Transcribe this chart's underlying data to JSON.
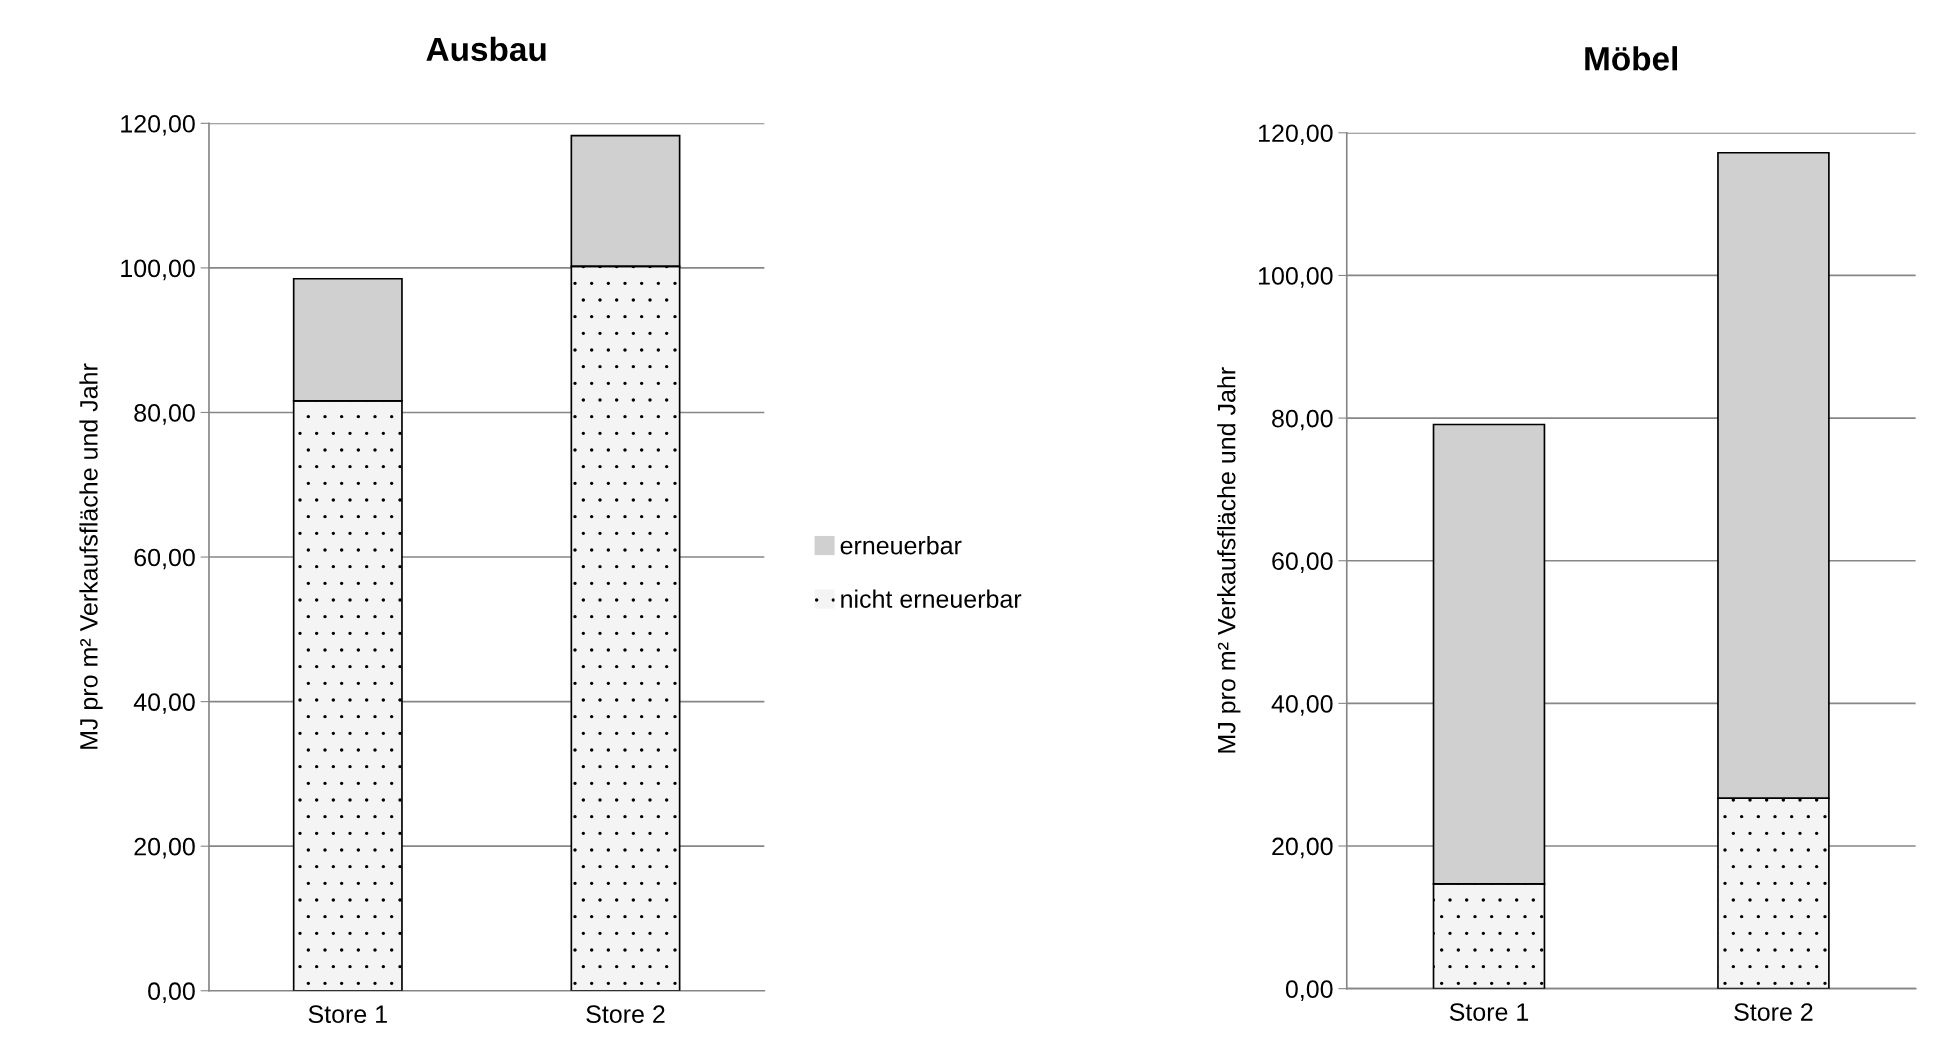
{
  "chart_data": [
    {
      "type": "bar",
      "title": "Ausbau",
      "ylabel": "MJ pro m² Verkaufsfläche und Jahr",
      "categories": [
        "Store 1",
        "Store 2"
      ],
      "stacked": true,
      "grid": "y",
      "legend": "right",
      "ylim": [
        0,
        120
      ],
      "yticks": [
        {
          "value": 0,
          "label": "0,00"
        },
        {
          "value": 20,
          "label": "20,00"
        },
        {
          "value": 40,
          "label": "40,00"
        },
        {
          "value": 60,
          "label": "60,00"
        },
        {
          "value": 80,
          "label": "80,00"
        },
        {
          "value": 100,
          "label": "100,00"
        },
        {
          "value": 120,
          "label": "120,00"
        }
      ],
      "series": [
        {
          "name": "nicht erneuerbar",
          "color": "#f4f4f4",
          "values": [
            81.6,
            100.2
          ]
        },
        {
          "name": "erneuerbar",
          "color": "#d0d0d0",
          "values": [
            16.9,
            18.1
          ]
        }
      ]
    },
    {
      "type": "bar",
      "title": "Möbel",
      "ylabel": "MJ pro m² Verkaufsfläche und Jahr",
      "categories": [
        "Store 1",
        "Store 2"
      ],
      "stacked": true,
      "grid": "y",
      "ylim": [
        0,
        120
      ],
      "yticks": [
        {
          "value": 0,
          "label": "0,00"
        },
        {
          "value": 20,
          "label": "20,00"
        },
        {
          "value": 40,
          "label": "40,00"
        },
        {
          "value": 60,
          "label": "60,00"
        },
        {
          "value": 80,
          "label": "80,00"
        },
        {
          "value": 100,
          "label": "100,00"
        },
        {
          "value": 120,
          "label": "120,00"
        }
      ],
      "series": [
        {
          "color": "#f4f4f4",
          "values": [
            14.7,
            26.7
          ]
        },
        {
          "color": "#d0d0d0",
          "values": [
            64.4,
            90.5
          ]
        }
      ]
    }
  ]
}
